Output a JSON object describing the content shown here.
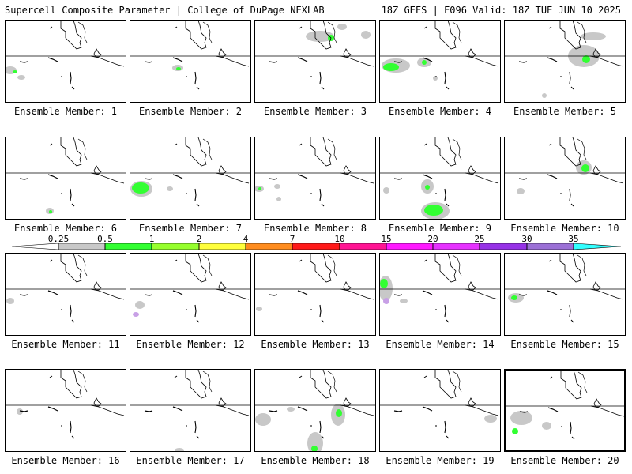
{
  "header": {
    "title_left": "Supercell Composite Parameter | College of DuPage NEXLAB",
    "title_right": "18Z GEFS | F096 Valid: 18Z TUE JUN 10 2025"
  },
  "caption_prefix": "Ensemble Member:",
  "members": [
    {
      "label": "Ensemble Member: 1",
      "blobs": [
        {
          "x": 6,
          "y": 63,
          "rx": 8,
          "ry": 5,
          "c": "gray"
        },
        {
          "x": 12,
          "y": 65,
          "rx": 3,
          "ry": 2,
          "c": "green"
        },
        {
          "x": 20,
          "y": 72,
          "rx": 5,
          "ry": 3,
          "c": "gray"
        }
      ]
    },
    {
      "label": "Ensemble Member: 2",
      "blobs": [
        {
          "x": 60,
          "y": 60,
          "rx": 7,
          "ry": 4,
          "c": "gray"
        },
        {
          "x": 61,
          "y": 61,
          "rx": 3,
          "ry": 2,
          "c": "green"
        }
      ]
    },
    {
      "label": "Ensemble Member: 3",
      "blobs": [
        {
          "x": 82,
          "y": 20,
          "rx": 18,
          "ry": 7,
          "c": "gray"
        },
        {
          "x": 96,
          "y": 22,
          "rx": 4,
          "ry": 4,
          "c": "green"
        },
        {
          "x": 110,
          "y": 8,
          "rx": 6,
          "ry": 4,
          "c": "gray"
        },
        {
          "x": 140,
          "y": 18,
          "rx": 6,
          "ry": 5,
          "c": "gray"
        }
      ]
    },
    {
      "label": "Ensemble Member: 4",
      "blobs": [
        {
          "x": 20,
          "y": 57,
          "rx": 18,
          "ry": 9,
          "c": "gray"
        },
        {
          "x": 14,
          "y": 59,
          "rx": 10,
          "ry": 5,
          "c": "green"
        },
        {
          "x": 56,
          "y": 53,
          "rx": 9,
          "ry": 6,
          "c": "gray"
        },
        {
          "x": 56,
          "y": 53,
          "rx": 3,
          "ry": 3,
          "c": "green"
        },
        {
          "x": 70,
          "y": 73,
          "rx": 3,
          "ry": 3,
          "c": "gray"
        }
      ]
    },
    {
      "label": "Ensemble Member: 5",
      "blobs": [
        {
          "x": 100,
          "y": 45,
          "rx": 20,
          "ry": 14,
          "c": "gray"
        },
        {
          "x": 103,
          "y": 49,
          "rx": 5,
          "ry": 5,
          "c": "green"
        },
        {
          "x": 112,
          "y": 20,
          "rx": 16,
          "ry": 5,
          "c": "gray"
        },
        {
          "x": 50,
          "y": 95,
          "rx": 3,
          "ry": 3,
          "c": "gray"
        }
      ]
    },
    {
      "label": "Ensemble Member: 6",
      "blobs": [
        {
          "x": 56,
          "y": 93,
          "rx": 5,
          "ry": 4,
          "c": "gray"
        },
        {
          "x": 57,
          "y": 94,
          "rx": 2,
          "ry": 2,
          "c": "green"
        }
      ]
    },
    {
      "label": "Ensemble Member: 7",
      "blobs": [
        {
          "x": 14,
          "y": 65,
          "rx": 14,
          "ry": 10,
          "c": "gray"
        },
        {
          "x": 13,
          "y": 64,
          "rx": 11,
          "ry": 7,
          "c": "green"
        },
        {
          "x": 50,
          "y": 65,
          "rx": 4,
          "ry": 3,
          "c": "gray"
        }
      ]
    },
    {
      "label": "Ensemble Member: 8",
      "blobs": [
        {
          "x": 5,
          "y": 65,
          "rx": 6,
          "ry": 4,
          "c": "gray"
        },
        {
          "x": 6,
          "y": 65,
          "rx": 2,
          "ry": 2,
          "c": "green"
        },
        {
          "x": 28,
          "y": 62,
          "rx": 4,
          "ry": 3,
          "c": "gray"
        },
        {
          "x": 30,
          "y": 78,
          "rx": 3,
          "ry": 3,
          "c": "gray"
        }
      ]
    },
    {
      "label": "Ensemble Member: 9",
      "blobs": [
        {
          "x": 60,
          "y": 62,
          "rx": 8,
          "ry": 9,
          "c": "gray"
        },
        {
          "x": 60,
          "y": 63,
          "rx": 3,
          "ry": 3,
          "c": "green"
        },
        {
          "x": 70,
          "y": 93,
          "rx": 18,
          "ry": 11,
          "c": "gray"
        },
        {
          "x": 68,
          "y": 92,
          "rx": 12,
          "ry": 7,
          "c": "green"
        },
        {
          "x": 8,
          "y": 67,
          "rx": 4,
          "ry": 4,
          "c": "gray"
        }
      ]
    },
    {
      "label": "Ensemble Member: 10",
      "blobs": [
        {
          "x": 100,
          "y": 38,
          "rx": 10,
          "ry": 9,
          "c": "gray"
        },
        {
          "x": 102,
          "y": 39,
          "rx": 5,
          "ry": 5,
          "c": "green"
        },
        {
          "x": 20,
          "y": 68,
          "rx": 5,
          "ry": 4,
          "c": "gray"
        }
      ]
    },
    {
      "label": "Ensemble Member: 11",
      "blobs": [
        {
          "x": 6,
          "y": 60,
          "rx": 5,
          "ry": 4,
          "c": "gray"
        }
      ]
    },
    {
      "label": "Ensemble Member: 12",
      "blobs": [
        {
          "x": 12,
          "y": 65,
          "rx": 6,
          "ry": 5,
          "c": "gray"
        },
        {
          "x": 7,
          "y": 77,
          "rx": 4,
          "ry": 3,
          "c": "purple"
        }
      ]
    },
    {
      "label": "Ensemble Member: 13",
      "blobs": [
        {
          "x": 5,
          "y": 70,
          "rx": 4,
          "ry": 3,
          "c": "gray"
        }
      ]
    },
    {
      "label": "Ensemble Member: 14",
      "blobs": [
        {
          "x": 7,
          "y": 44,
          "rx": 9,
          "ry": 16,
          "c": "gray"
        },
        {
          "x": 5,
          "y": 38,
          "rx": 5,
          "ry": 6,
          "c": "green"
        },
        {
          "x": 8,
          "y": 60,
          "rx": 4,
          "ry": 4,
          "c": "purple"
        },
        {
          "x": 30,
          "y": 60,
          "rx": 5,
          "ry": 3,
          "c": "gray"
        }
      ]
    },
    {
      "label": "Ensemble Member: 15",
      "blobs": [
        {
          "x": 14,
          "y": 56,
          "rx": 10,
          "ry": 6,
          "c": "gray"
        },
        {
          "x": 12,
          "y": 56,
          "rx": 4,
          "ry": 3,
          "c": "green"
        }
      ]
    },
    {
      "label": "Ensemble Member: 16",
      "blobs": [
        {
          "x": 18,
          "y": 53,
          "rx": 4,
          "ry": 4,
          "c": "gray"
        }
      ]
    },
    {
      "label": "Ensemble Member: 17",
      "blobs": [
        {
          "x": 62,
          "y": 102,
          "rx": 6,
          "ry": 3,
          "c": "gray"
        }
      ]
    },
    {
      "label": "Ensemble Member: 18",
      "blobs": [
        {
          "x": 10,
          "y": 63,
          "rx": 10,
          "ry": 8,
          "c": "gray"
        },
        {
          "x": 105,
          "y": 57,
          "rx": 9,
          "ry": 14,
          "c": "gray"
        },
        {
          "x": 106,
          "y": 55,
          "rx": 4,
          "ry": 5,
          "c": "green"
        },
        {
          "x": 76,
          "y": 93,
          "rx": 10,
          "ry": 14,
          "c": "gray"
        },
        {
          "x": 75,
          "y": 100,
          "rx": 4,
          "ry": 4,
          "c": "green"
        },
        {
          "x": 45,
          "y": 50,
          "rx": 5,
          "ry": 3,
          "c": "gray"
        }
      ]
    },
    {
      "label": "Ensemble Member: 19",
      "blobs": [
        {
          "x": 140,
          "y": 62,
          "rx": 8,
          "ry": 5,
          "c": "gray"
        }
      ]
    },
    {
      "label": "Ensemble Member: 20",
      "blobs": [
        {
          "x": 20,
          "y": 60,
          "rx": 14,
          "ry": 9,
          "c": "gray"
        },
        {
          "x": 12,
          "y": 77,
          "rx": 4,
          "ry": 4,
          "c": "green"
        },
        {
          "x": 52,
          "y": 70,
          "rx": 6,
          "ry": 5,
          "c": "gray"
        }
      ]
    }
  ],
  "colorbar": {
    "labels": [
      "0.25",
      "0.5",
      "1",
      "2",
      "4",
      "7",
      "10",
      "15",
      "20",
      "25",
      "30",
      "35"
    ],
    "colors": [
      "#ffffff",
      "#c8c8c8",
      "#32ff32",
      "#96ff2d",
      "#ffff3c",
      "#ff8c1e",
      "#ff1a1a",
      "#ff1493",
      "#ff19ff",
      "#e632ff",
      "#9632e6",
      "#9b70d6",
      "#32ffff"
    ]
  },
  "fill_colors": {
    "gray": "#c8c8c8",
    "green": "#32ff32",
    "purple": "#c8a0e6"
  }
}
